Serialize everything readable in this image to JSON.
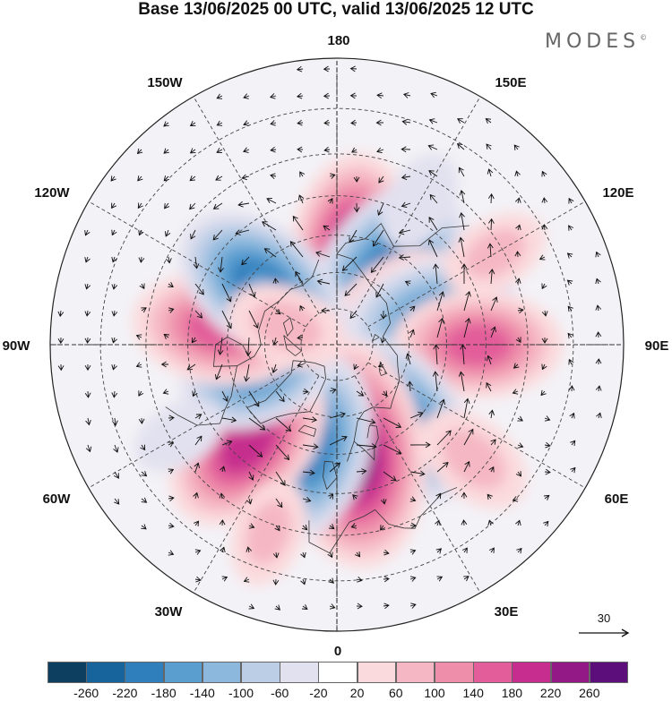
{
  "title": "Base 13/06/2025 00 UTC, valid 13/06/2025 12 UTC",
  "brand": "MODES",
  "brand_mark": "©",
  "map": {
    "projection": "north-polar-stereographic",
    "longitude_labels": {
      "top": "180",
      "top_left": "150W",
      "top_right": "150E",
      "upper_left": "120W",
      "upper_right": "120E",
      "left": "90W",
      "right": "90E",
      "lower_left": "60W",
      "lower_right": "60E",
      "bottom_left": "30W",
      "bottom_right": "30E",
      "bottom": "0"
    },
    "wind_reference_vector": "30",
    "anomaly_centers": [
      {
        "lon": 172,
        "lat": 63,
        "value": 180
      },
      {
        "lon": 145,
        "lat": 66,
        "value": -200
      },
      {
        "lon": 122,
        "lat": 70,
        "value": 120
      },
      {
        "lon": 107,
        "lat": 63,
        "value": -160
      },
      {
        "lon": 90,
        "lat": 52,
        "value": 150
      },
      {
        "lon": 40,
        "lat": 63,
        "value": -180
      },
      {
        "lon": 8,
        "lat": 60,
        "value": 240
      },
      {
        "lon": -15,
        "lat": 61,
        "value": -180
      },
      {
        "lon": -42,
        "lat": 54,
        "value": 180
      },
      {
        "lon": -70,
        "lat": 67,
        "value": -140
      },
      {
        "lon": -98,
        "lat": 58,
        "value": 160
      },
      {
        "lon": -128,
        "lat": 64,
        "value": -180
      },
      {
        "lon": -110,
        "lat": 75,
        "value": 80
      },
      {
        "lon": 120,
        "lat": 42,
        "value": 60
      },
      {
        "lon": 50,
        "lat": 43,
        "value": 80
      },
      {
        "lon": -20,
        "lat": 38,
        "value": 60
      },
      {
        "lon": 150,
        "lat": 46,
        "value": -50
      },
      {
        "lon": -60,
        "lat": 42,
        "value": -40
      }
    ]
  },
  "colorbar": {
    "colors": [
      "#0d4060",
      "#17639c",
      "#2f7fbd",
      "#5a9ed0",
      "#8cb8dd",
      "#bccde6",
      "#e2e1ef",
      "#ffffff",
      "#fbdadd",
      "#f5b7c3",
      "#ee8eaa",
      "#e25d9a",
      "#c62d8e",
      "#931a86",
      "#5c0f7a"
    ],
    "ticks": [
      "-260",
      "-220",
      "-180",
      "-140",
      "-100",
      "-60",
      "-20",
      "20",
      "60",
      "100",
      "140",
      "180",
      "220",
      "260"
    ]
  }
}
